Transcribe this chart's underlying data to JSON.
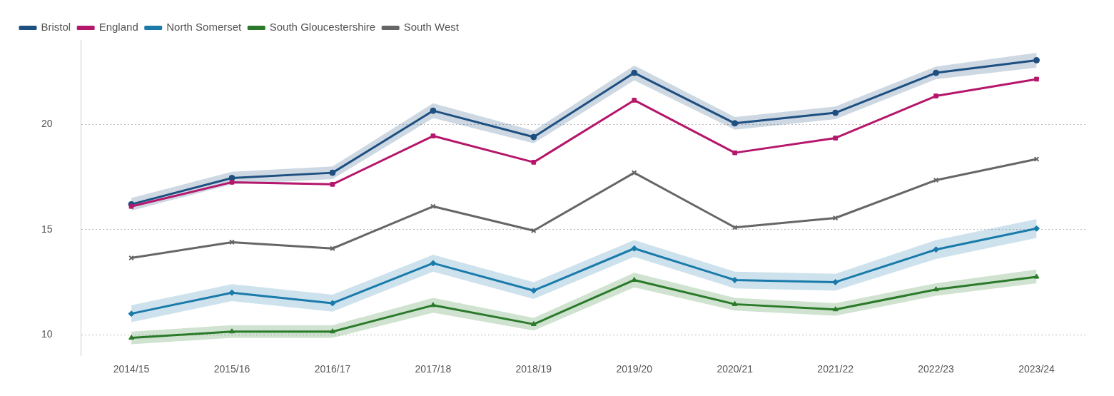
{
  "chart_data": {
    "type": "line",
    "categories": [
      "2014/15",
      "2015/16",
      "2016/17",
      "2017/18",
      "2018/19",
      "2019/20",
      "2020/21",
      "2021/22",
      "2022/23",
      "2023/24"
    ],
    "series": [
      {
        "name": "Bristol",
        "color": "#1d4f80",
        "marker": "circle",
        "values": [
          16.2,
          17.45,
          17.7,
          20.65,
          19.4,
          22.45,
          20.05,
          20.55,
          22.45,
          23.05
        ],
        "lower": [
          15.9,
          17.15,
          17.4,
          20.3,
          19.1,
          22.1,
          19.75,
          20.25,
          22.15,
          22.7
        ],
        "upper": [
          16.5,
          17.75,
          18.0,
          21.0,
          19.7,
          22.8,
          20.35,
          20.85,
          22.75,
          23.4
        ]
      },
      {
        "name": "England",
        "color": "#b5176b",
        "marker": "square",
        "values": [
          16.1,
          17.25,
          17.15,
          19.45,
          18.2,
          21.15,
          18.65,
          19.35,
          21.35,
          22.15
        ]
      },
      {
        "name": "North Somerset",
        "color": "#1a7bab",
        "marker": "diamond",
        "values": [
          11.0,
          12.0,
          11.5,
          13.4,
          12.1,
          14.1,
          12.6,
          12.5,
          14.05,
          15.05
        ],
        "lower": [
          10.6,
          11.6,
          11.1,
          13.0,
          11.7,
          13.7,
          12.2,
          12.1,
          13.6,
          14.6
        ],
        "upper": [
          11.4,
          12.4,
          11.9,
          13.8,
          12.5,
          14.5,
          13.0,
          12.9,
          14.5,
          15.5
        ]
      },
      {
        "name": "South Gloucestershire",
        "color": "#2a7a2a",
        "marker": "triangle",
        "values": [
          9.85,
          10.15,
          10.15,
          11.4,
          10.5,
          12.6,
          11.45,
          11.2,
          12.15,
          12.75
        ],
        "lower": [
          9.55,
          9.85,
          9.85,
          11.05,
          10.2,
          12.25,
          11.15,
          10.9,
          11.85,
          12.45
        ],
        "upper": [
          10.15,
          10.45,
          10.45,
          11.75,
          10.8,
          12.95,
          11.75,
          11.5,
          12.45,
          13.1
        ]
      },
      {
        "name": "South West",
        "color": "#666666",
        "marker": "cross",
        "values": [
          13.65,
          14.4,
          14.1,
          16.1,
          14.95,
          17.7,
          15.1,
          15.55,
          17.35,
          18.35
        ]
      }
    ],
    "ylim": [
      9,
      24
    ],
    "yticks": [
      10,
      15,
      20
    ],
    "grid": "y",
    "legend": "top left"
  }
}
